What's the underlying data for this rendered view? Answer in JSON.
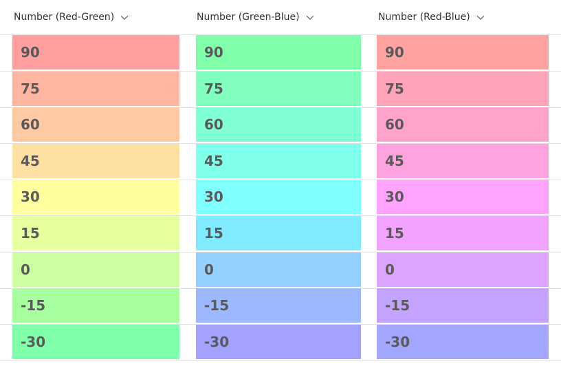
{
  "columns": [
    {
      "label": "Number (Red-Green)",
      "chevron_icon": "chevron-down-icon"
    },
    {
      "label": "Number (Green-Blue)",
      "chevron_icon": "chevron-down-icon"
    },
    {
      "label": "Number (Red-Blue)",
      "chevron_icon": "chevron-down-icon"
    }
  ],
  "rows": [
    {
      "value": "90",
      "colors": [
        "#ff9f9f",
        "#80ffaa",
        "#ffa3a0"
      ]
    },
    {
      "value": "75",
      "colors": [
        "#ffb6a0",
        "#80ffbf",
        "#ffa3b8"
      ]
    },
    {
      "value": "60",
      "colors": [
        "#ffcaa3",
        "#80ffd4",
        "#ffa3cc"
      ]
    },
    {
      "value": "45",
      "colors": [
        "#ffe0a3",
        "#80ffea",
        "#ffa3e0"
      ]
    },
    {
      "value": "30",
      "colors": [
        "#ffff9f",
        "#80ffff",
        "#ffa3ff"
      ]
    },
    {
      "value": "15",
      "colors": [
        "#e6ff9f",
        "#80eaff",
        "#f2a3ff"
      ]
    },
    {
      "value": "0",
      "colors": [
        "#ccffa0",
        "#96d0ff",
        "#dca3ff"
      ]
    },
    {
      "value": "-15",
      "colors": [
        "#a7ffa0",
        "#9cb8ff",
        "#c3a3ff"
      ]
    },
    {
      "value": "-30",
      "colors": [
        "#80ffaa",
        "#a3a3ff",
        "#a3a6ff"
      ]
    }
  ]
}
